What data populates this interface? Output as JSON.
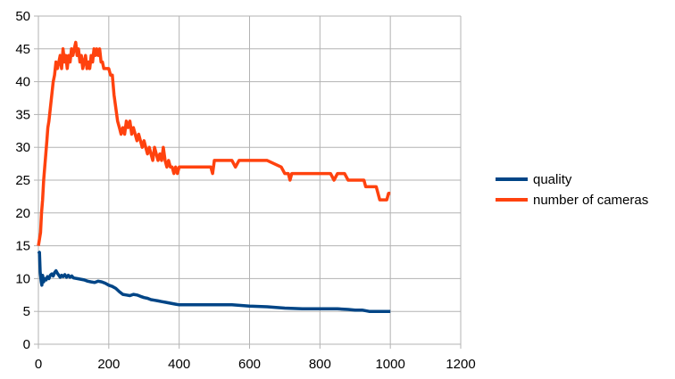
{
  "chart_data": {
    "type": "line",
    "title": "",
    "xlabel": "",
    "ylabel": "",
    "xlim": [
      0,
      1200
    ],
    "ylim": [
      0,
      50
    ],
    "x_ticks": [
      "0",
      "200",
      "400",
      "600",
      "800",
      "1000",
      "1200"
    ],
    "y_ticks": [
      "0",
      "5",
      "10",
      "15",
      "20",
      "25",
      "30",
      "35",
      "40",
      "45",
      "50"
    ],
    "grid": true,
    "legend_position": "right",
    "series": [
      {
        "name": "quality",
        "color": "#004586",
        "points": [
          [
            0,
            13.8
          ],
          [
            3,
            14
          ],
          [
            5,
            11
          ],
          [
            8,
            9.5
          ],
          [
            10,
            9
          ],
          [
            12,
            10.5
          ],
          [
            15,
            9.5
          ],
          [
            18,
            10
          ],
          [
            22,
            9.8
          ],
          [
            26,
            10.3
          ],
          [
            30,
            10
          ],
          [
            34,
            10.5
          ],
          [
            38,
            10.7
          ],
          [
            42,
            10.4
          ],
          [
            46,
            10.9
          ],
          [
            50,
            11.2
          ],
          [
            54,
            10.8
          ],
          [
            58,
            10.5
          ],
          [
            62,
            10.2
          ],
          [
            66,
            10.5
          ],
          [
            70,
            10.3
          ],
          [
            75,
            10.6
          ],
          [
            80,
            10.2
          ],
          [
            85,
            10.5
          ],
          [
            90,
            10.2
          ],
          [
            95,
            10.4
          ],
          [
            100,
            10.1
          ],
          [
            110,
            10
          ],
          [
            120,
            9.9
          ],
          [
            130,
            9.8
          ],
          [
            140,
            9.6
          ],
          [
            150,
            9.5
          ],
          [
            160,
            9.4
          ],
          [
            170,
            9.6
          ],
          [
            180,
            9.5
          ],
          [
            190,
            9.3
          ],
          [
            200,
            9
          ],
          [
            210,
            8.8
          ],
          [
            220,
            8.5
          ],
          [
            230,
            8
          ],
          [
            240,
            7.6
          ],
          [
            250,
            7.5
          ],
          [
            260,
            7.4
          ],
          [
            270,
            7.6
          ],
          [
            280,
            7.5
          ],
          [
            290,
            7.3
          ],
          [
            300,
            7.1
          ],
          [
            310,
            7
          ],
          [
            320,
            6.8
          ],
          [
            330,
            6.7
          ],
          [
            340,
            6.6
          ],
          [
            350,
            6.5
          ],
          [
            360,
            6.4
          ],
          [
            370,
            6.3
          ],
          [
            380,
            6.2
          ],
          [
            390,
            6.1
          ],
          [
            400,
            6
          ],
          [
            450,
            6
          ],
          [
            500,
            6
          ],
          [
            550,
            6
          ],
          [
            600,
            5.8
          ],
          [
            650,
            5.7
          ],
          [
            700,
            5.5
          ],
          [
            750,
            5.4
          ],
          [
            800,
            5.4
          ],
          [
            850,
            5.4
          ],
          [
            880,
            5.3
          ],
          [
            900,
            5.2
          ],
          [
            920,
            5.2
          ],
          [
            940,
            5
          ],
          [
            960,
            5
          ],
          [
            980,
            5
          ],
          [
            1000,
            5
          ]
        ]
      },
      {
        "name": "number of cameras",
        "color": "#ff420e",
        "points": [
          [
            0,
            15
          ],
          [
            3,
            16
          ],
          [
            6,
            17
          ],
          [
            9,
            20
          ],
          [
            12,
            22
          ],
          [
            15,
            25
          ],
          [
            18,
            27
          ],
          [
            21,
            29
          ],
          [
            24,
            31
          ],
          [
            27,
            33
          ],
          [
            30,
            34
          ],
          [
            34,
            36
          ],
          [
            38,
            38
          ],
          [
            42,
            40
          ],
          [
            46,
            41
          ],
          [
            50,
            43
          ],
          [
            54,
            42
          ],
          [
            58,
            43
          ],
          [
            62,
            44
          ],
          [
            66,
            42
          ],
          [
            70,
            45
          ],
          [
            74,
            43
          ],
          [
            78,
            44
          ],
          [
            82,
            42
          ],
          [
            86,
            44
          ],
          [
            90,
            43
          ],
          [
            94,
            45
          ],
          [
            98,
            44
          ],
          [
            102,
            45
          ],
          [
            106,
            46
          ],
          [
            110,
            44
          ],
          [
            114,
            45
          ],
          [
            118,
            43
          ],
          [
            122,
            44
          ],
          [
            126,
            42
          ],
          [
            130,
            43
          ],
          [
            134,
            44
          ],
          [
            138,
            42
          ],
          [
            142,
            43
          ],
          [
            146,
            42
          ],
          [
            150,
            44
          ],
          [
            154,
            43
          ],
          [
            158,
            45
          ],
          [
            162,
            44
          ],
          [
            166,
            45
          ],
          [
            170,
            44
          ],
          [
            174,
            45
          ],
          [
            178,
            43
          ],
          [
            182,
            43
          ],
          [
            186,
            42
          ],
          [
            190,
            42
          ],
          [
            200,
            42
          ],
          [
            205,
            41
          ],
          [
            210,
            41
          ],
          [
            215,
            38
          ],
          [
            220,
            36
          ],
          [
            225,
            34
          ],
          [
            230,
            33
          ],
          [
            235,
            32
          ],
          [
            240,
            33
          ],
          [
            245,
            32
          ],
          [
            250,
            34
          ],
          [
            255,
            33
          ],
          [
            260,
            34
          ],
          [
            265,
            32
          ],
          [
            270,
            33
          ],
          [
            275,
            32
          ],
          [
            280,
            31
          ],
          [
            285,
            32
          ],
          [
            290,
            31
          ],
          [
            295,
            30
          ],
          [
            300,
            31
          ],
          [
            305,
            30
          ],
          [
            310,
            29
          ],
          [
            315,
            30
          ],
          [
            320,
            29
          ],
          [
            325,
            28
          ],
          [
            330,
            30
          ],
          [
            335,
            29
          ],
          [
            340,
            28
          ],
          [
            345,
            29
          ],
          [
            350,
            28
          ],
          [
            355,
            30
          ],
          [
            360,
            28
          ],
          [
            365,
            27
          ],
          [
            370,
            28
          ],
          [
            375,
            27
          ],
          [
            380,
            27
          ],
          [
            385,
            26
          ],
          [
            390,
            27
          ],
          [
            395,
            26
          ],
          [
            400,
            27
          ],
          [
            450,
            27
          ],
          [
            490,
            27
          ],
          [
            495,
            26
          ],
          [
            500,
            28
          ],
          [
            550,
            28
          ],
          [
            560,
            27
          ],
          [
            570,
            28
          ],
          [
            600,
            28
          ],
          [
            650,
            28
          ],
          [
            690,
            27
          ],
          [
            700,
            26
          ],
          [
            710,
            26
          ],
          [
            715,
            25
          ],
          [
            720,
            26
          ],
          [
            750,
            26
          ],
          [
            800,
            26
          ],
          [
            830,
            26
          ],
          [
            840,
            25
          ],
          [
            850,
            26
          ],
          [
            870,
            26
          ],
          [
            880,
            25
          ],
          [
            900,
            25
          ],
          [
            925,
            25
          ],
          [
            930,
            24
          ],
          [
            940,
            24
          ],
          [
            960,
            24
          ],
          [
            970,
            22
          ],
          [
            990,
            22
          ],
          [
            995,
            23
          ],
          [
            1000,
            23
          ]
        ]
      }
    ]
  }
}
